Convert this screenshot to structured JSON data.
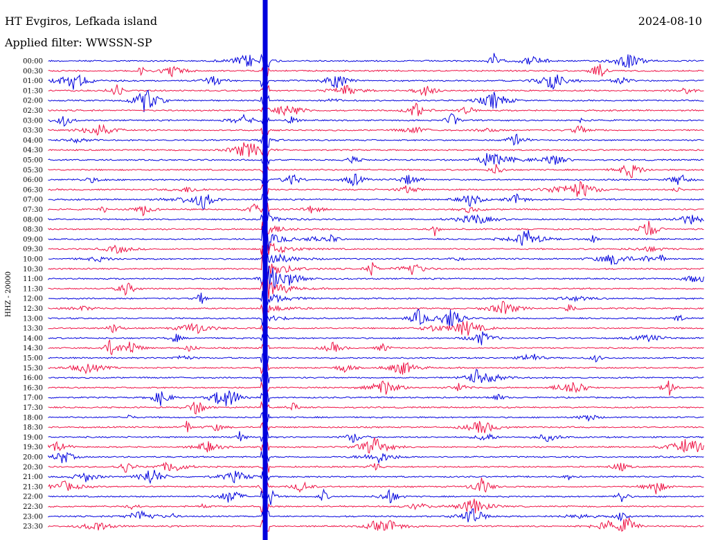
{
  "header": {
    "station": "HT Evgiros, Lefkada island",
    "filter": "Applied filter: WWSSN-SP",
    "date": "2024-08-10"
  },
  "chart_data": {
    "type": "line",
    "ylabel": "HHZ - 20000",
    "tick_labels": [
      "00:00",
      "00:30",
      "01:00",
      "01:30",
      "02:00",
      "02:30",
      "03:00",
      "03:30",
      "04:00",
      "04:30",
      "05:00",
      "05:30",
      "06:00",
      "06:30",
      "07:00",
      "07:30",
      "08:00",
      "08:30",
      "09:00",
      "09:30",
      "10:00",
      "10:30",
      "11:00",
      "11:30",
      "12:00",
      "12:30",
      "13:00",
      "13:30",
      "14:00",
      "14:30",
      "15:00",
      "15:30",
      "16:00",
      "16:30",
      "17:00",
      "17:30",
      "18:00",
      "18:30",
      "19:00",
      "19:30",
      "20:00",
      "20:30",
      "21:00",
      "21:30",
      "22:00",
      "22:30",
      "23:00",
      "23:30"
    ],
    "colors": [
      "#0000dd",
      "#ee1144"
    ],
    "major_event_x_fraction": 0.33,
    "grid": false
  }
}
